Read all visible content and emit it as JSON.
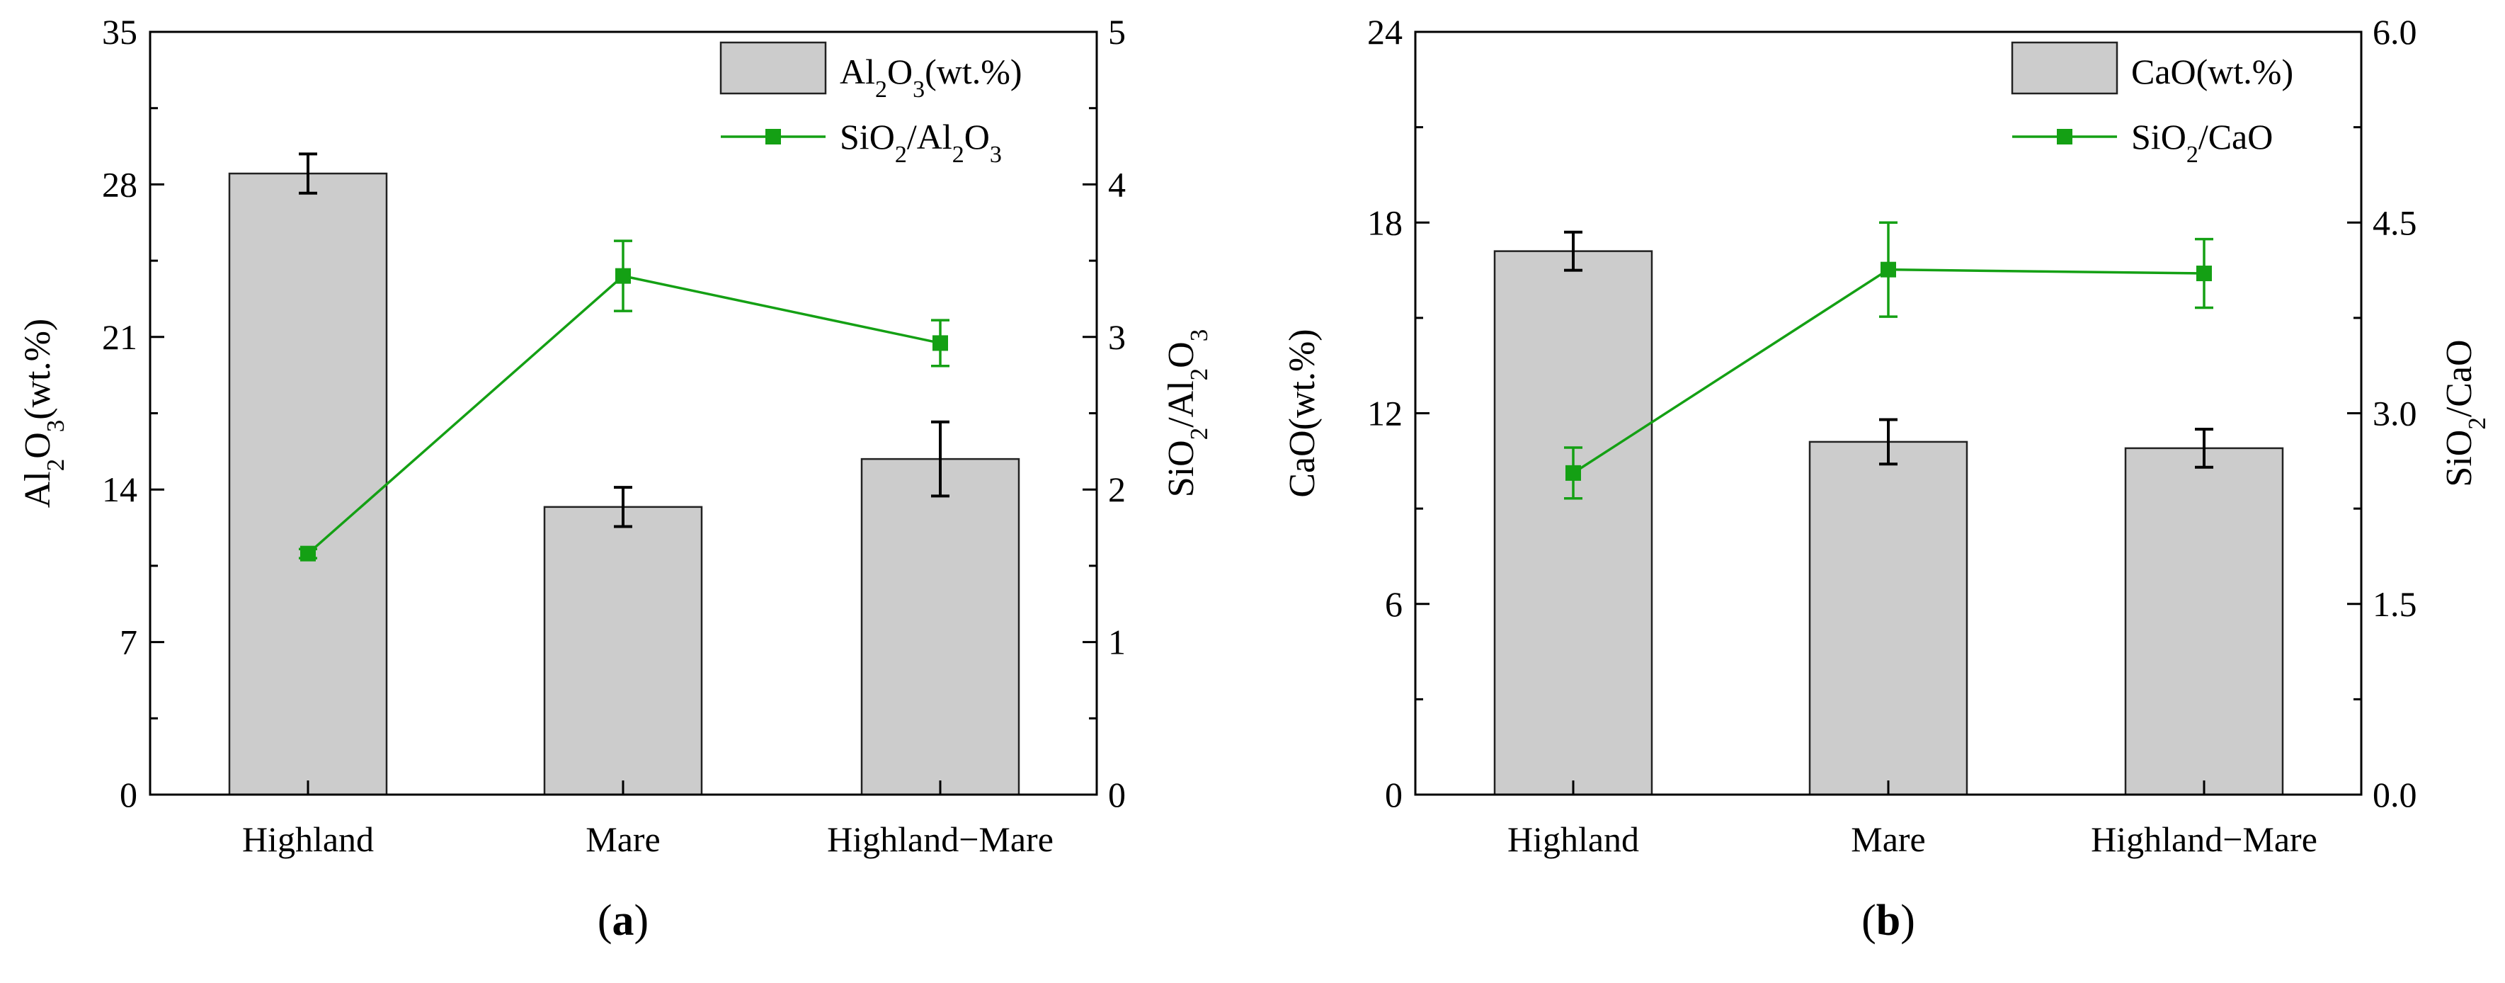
{
  "colors": {
    "bar_fill": "#cccccc",
    "bar_stroke": "#222222",
    "line": "#14a014",
    "marker": "#14a014",
    "errorbar_bar": "#000000",
    "errorbar_line": "#14a014",
    "axis": "#000000"
  },
  "chart_data": [
    {
      "panel": "a",
      "panel_label_open": "(",
      "panel_label_letter": "a",
      "panel_label_close": ")",
      "type": "bar+line",
      "categories": [
        "Highland",
        "Mare",
        "Highland−Mare"
      ],
      "left_axis": {
        "title_parts": [
          "Al",
          "2",
          "O",
          "3",
          "(wt.%)"
        ],
        "ylim": [
          0,
          35
        ],
        "ticks": [
          0,
          7,
          14,
          21,
          28,
          35
        ],
        "tick_labels": [
          "0",
          "7",
          "14",
          "21",
          "28",
          "35"
        ]
      },
      "right_axis": {
        "title_parts": [
          "SiO",
          "2",
          "/Al",
          "2",
          "O",
          "3"
        ],
        "ylim": [
          0,
          5
        ],
        "ticks": [
          0,
          1,
          2,
          3,
          4,
          5
        ],
        "tick_labels": [
          "0",
          "1",
          "2",
          "3",
          "4",
          "5"
        ]
      },
      "series": [
        {
          "name_parts": [
            "Al",
            "2",
            "O",
            "3",
            "(wt.%)"
          ],
          "kind": "bar",
          "axis": "left",
          "values": [
            28.5,
            13.2,
            15.4
          ],
          "errors": [
            0.9,
            0.9,
            1.7
          ]
        },
        {
          "name_parts": [
            "SiO",
            "2",
            "/Al",
            "2",
            "O",
            "3"
          ],
          "kind": "line",
          "axis": "right",
          "values": [
            1.58,
            3.4,
            2.96
          ],
          "errors": [
            0.03,
            0.23,
            0.15
          ]
        }
      ],
      "legend": "top-right"
    },
    {
      "panel": "b",
      "panel_label_open": "(",
      "panel_label_letter": "b",
      "panel_label_close": ")",
      "type": "bar+line",
      "categories": [
        "Highland",
        "Mare",
        "Highland−Mare"
      ],
      "left_axis": {
        "title_parts": [
          "CaO(wt.%)"
        ],
        "ylim": [
          0,
          24
        ],
        "ticks": [
          0,
          6,
          12,
          18,
          24
        ],
        "tick_labels": [
          "0",
          "6",
          "12",
          "18",
          "24"
        ]
      },
      "right_axis": {
        "title_parts": [
          "SiO",
          "2",
          "/CaO"
        ],
        "ylim": [
          0,
          6
        ],
        "ticks": [
          0,
          1.5,
          3,
          4.5,
          6
        ],
        "tick_labels": [
          "0.0",
          "1.5",
          "3.0",
          "4.5",
          "6.0"
        ]
      },
      "series": [
        {
          "name_parts": [
            "CaO(wt.%)"
          ],
          "kind": "bar",
          "axis": "left",
          "values": [
            17.1,
            11.1,
            10.9
          ],
          "errors": [
            0.6,
            0.7,
            0.6
          ]
        },
        {
          "name_parts": [
            "SiO",
            "2",
            "/CaO"
          ],
          "kind": "line",
          "axis": "right",
          "values": [
            2.53,
            4.13,
            4.1
          ],
          "errors": [
            0.2,
            0.37,
            0.27
          ]
        }
      ],
      "legend": "top-right"
    }
  ]
}
